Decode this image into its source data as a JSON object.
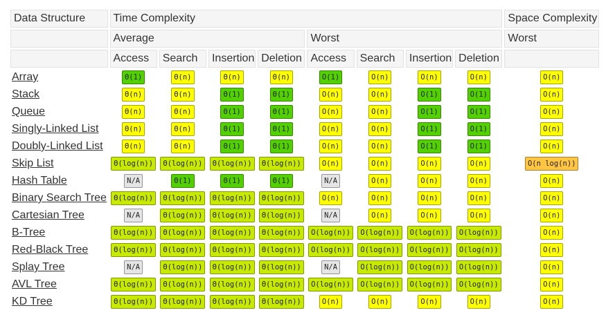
{
  "header": {
    "row1": [
      "Data Structure",
      "Time Complexity",
      "Space Complexity"
    ],
    "row2": [
      "Average",
      "Worst",
      "Worst"
    ],
    "row3": [
      "Access",
      "Search",
      "Insertion",
      "Deletion",
      "Access",
      "Search",
      "Insertion",
      "Deletion"
    ]
  },
  "rows": [
    {
      "name": "Array",
      "cells": [
        "Θ(1)",
        "Θ(n)",
        "Θ(n)",
        "Θ(n)",
        "O(1)",
        "O(n)",
        "O(n)",
        "O(n)",
        "O(n)"
      ],
      "colors": [
        "#53d000",
        "#ffff00",
        "#ffff00",
        "#ffff00",
        "#53d000",
        "#ffff00",
        "#ffff00",
        "#ffff00",
        "#ffff00"
      ]
    },
    {
      "name": "Stack",
      "cells": [
        "Θ(n)",
        "Θ(n)",
        "Θ(1)",
        "Θ(1)",
        "O(n)",
        "O(n)",
        "O(1)",
        "O(1)",
        "O(n)"
      ],
      "colors": [
        "#ffff00",
        "#ffff00",
        "#53d000",
        "#53d000",
        "#ffff00",
        "#ffff00",
        "#53d000",
        "#53d000",
        "#ffff00"
      ]
    },
    {
      "name": "Queue",
      "cells": [
        "Θ(n)",
        "Θ(n)",
        "Θ(1)",
        "Θ(1)",
        "O(n)",
        "O(n)",
        "O(1)",
        "O(1)",
        "O(n)"
      ],
      "colors": [
        "#ffff00",
        "#ffff00",
        "#53d000",
        "#53d000",
        "#ffff00",
        "#ffff00",
        "#53d000",
        "#53d000",
        "#ffff00"
      ]
    },
    {
      "name": "Singly-Linked List",
      "cells": [
        "Θ(n)",
        "Θ(n)",
        "Θ(1)",
        "Θ(1)",
        "O(n)",
        "O(n)",
        "O(1)",
        "O(1)",
        "O(n)"
      ],
      "colors": [
        "#ffff00",
        "#ffff00",
        "#53d000",
        "#53d000",
        "#ffff00",
        "#ffff00",
        "#53d000",
        "#53d000",
        "#ffff00"
      ]
    },
    {
      "name": "Doubly-Linked List",
      "cells": [
        "Θ(n)",
        "Θ(n)",
        "Θ(1)",
        "Θ(1)",
        "O(n)",
        "O(n)",
        "O(1)",
        "O(1)",
        "O(n)"
      ],
      "colors": [
        "#ffff00",
        "#ffff00",
        "#53d000",
        "#53d000",
        "#ffff00",
        "#ffff00",
        "#53d000",
        "#53d000",
        "#ffff00"
      ]
    },
    {
      "name": "Skip List",
      "cells": [
        "Θ(log(n))",
        "Θ(log(n))",
        "Θ(log(n))",
        "Θ(log(n))",
        "O(n)",
        "O(n)",
        "O(n)",
        "O(n)",
        "O(n log(n))"
      ],
      "colors": [
        "#c8ea00",
        "#c8ea00",
        "#c8ea00",
        "#c8ea00",
        "#ffff00",
        "#ffff00",
        "#ffff00",
        "#ffff00",
        "#ffc543"
      ]
    },
    {
      "name": "Hash Table",
      "cells": [
        "N/A",
        "Θ(1)",
        "Θ(1)",
        "Θ(1)",
        "N/A",
        "O(n)",
        "O(n)",
        "O(n)",
        "O(n)"
      ],
      "colors": [
        "#e5e5e5",
        "#53d000",
        "#53d000",
        "#53d000",
        "#e5e5e5",
        "#ffff00",
        "#ffff00",
        "#ffff00",
        "#ffff00"
      ]
    },
    {
      "name": "Binary Search Tree",
      "cells": [
        "Θ(log(n))",
        "Θ(log(n))",
        "Θ(log(n))",
        "Θ(log(n))",
        "O(n)",
        "O(n)",
        "O(n)",
        "O(n)",
        "O(n)"
      ],
      "colors": [
        "#c8ea00",
        "#c8ea00",
        "#c8ea00",
        "#c8ea00",
        "#ffff00",
        "#ffff00",
        "#ffff00",
        "#ffff00",
        "#ffff00"
      ]
    },
    {
      "name": "Cartesian Tree",
      "cells": [
        "N/A",
        "Θ(log(n))",
        "Θ(log(n))",
        "Θ(log(n))",
        "N/A",
        "O(n)",
        "O(n)",
        "O(n)",
        "O(n)"
      ],
      "colors": [
        "#e5e5e5",
        "#c8ea00",
        "#c8ea00",
        "#c8ea00",
        "#e5e5e5",
        "#ffff00",
        "#ffff00",
        "#ffff00",
        "#ffff00"
      ]
    },
    {
      "name": "B-Tree",
      "cells": [
        "Θ(log(n))",
        "Θ(log(n))",
        "Θ(log(n))",
        "Θ(log(n))",
        "O(log(n))",
        "O(log(n))",
        "O(log(n))",
        "O(log(n))",
        "O(n)"
      ],
      "colors": [
        "#c8ea00",
        "#c8ea00",
        "#c8ea00",
        "#c8ea00",
        "#c8ea00",
        "#c8ea00",
        "#c8ea00",
        "#c8ea00",
        "#ffff00"
      ]
    },
    {
      "name": "Red-Black Tree",
      "cells": [
        "Θ(log(n))",
        "Θ(log(n))",
        "Θ(log(n))",
        "Θ(log(n))",
        "O(log(n))",
        "O(log(n))",
        "O(log(n))",
        "O(log(n))",
        "O(n)"
      ],
      "colors": [
        "#c8ea00",
        "#c8ea00",
        "#c8ea00",
        "#c8ea00",
        "#c8ea00",
        "#c8ea00",
        "#c8ea00",
        "#c8ea00",
        "#ffff00"
      ]
    },
    {
      "name": "Splay Tree",
      "cells": [
        "N/A",
        "Θ(log(n))",
        "Θ(log(n))",
        "Θ(log(n))",
        "N/A",
        "O(log(n))",
        "O(log(n))",
        "O(log(n))",
        "O(n)"
      ],
      "colors": [
        "#e5e5e5",
        "#c8ea00",
        "#c8ea00",
        "#c8ea00",
        "#e5e5e5",
        "#c8ea00",
        "#c8ea00",
        "#c8ea00",
        "#ffff00"
      ]
    },
    {
      "name": "AVL Tree",
      "cells": [
        "Θ(log(n))",
        "Θ(log(n))",
        "Θ(log(n))",
        "Θ(log(n))",
        "O(log(n))",
        "O(log(n))",
        "O(log(n))",
        "O(log(n))",
        "O(n)"
      ],
      "colors": [
        "#c8ea00",
        "#c8ea00",
        "#c8ea00",
        "#c8ea00",
        "#c8ea00",
        "#c8ea00",
        "#c8ea00",
        "#c8ea00",
        "#ffff00"
      ]
    },
    {
      "name": "KD Tree",
      "cells": [
        "Θ(log(n))",
        "Θ(log(n))",
        "Θ(log(n))",
        "Θ(log(n))",
        "O(n)",
        "O(n)",
        "O(n)",
        "O(n)",
        "O(n)"
      ],
      "colors": [
        "#c8ea00",
        "#c8ea00",
        "#c8ea00",
        "#c8ea00",
        "#ffff00",
        "#ffff00",
        "#ffff00",
        "#ffff00",
        "#ffff00"
      ]
    }
  ]
}
